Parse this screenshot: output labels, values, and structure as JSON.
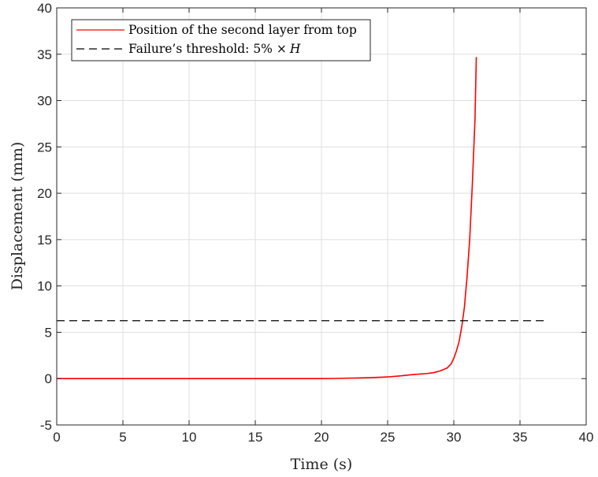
{
  "chart_data": {
    "type": "line",
    "xlabel": "Time (s)",
    "ylabel": "Displacement (mm)",
    "xlim": [
      0,
      40
    ],
    "ylim": [
      -5,
      40
    ],
    "x_ticks": [
      0,
      5,
      10,
      15,
      20,
      25,
      30,
      35,
      40
    ],
    "x_tick_labels": [
      "0",
      "5",
      "10",
      "15",
      "20",
      "25",
      "30",
      "35",
      "40"
    ],
    "y_ticks": [
      -5,
      0,
      5,
      10,
      15,
      20,
      25,
      30,
      35,
      40
    ],
    "y_tick_labels": [
      "-5",
      "0",
      "5",
      "10",
      "15",
      "20",
      "25",
      "30",
      "35",
      "40"
    ],
    "grid": true,
    "legend_position": "top-left",
    "series": [
      {
        "name": "Position of the second layer from top",
        "color": "#ff0000",
        "style": "solid",
        "x": [
          0,
          5,
          10,
          15,
          20,
          21,
          22,
          23,
          24,
          25,
          26,
          27,
          28,
          28.5,
          29,
          29.5,
          29.8,
          30,
          30.2,
          30.4,
          30.6,
          30.8,
          31.0,
          31.2,
          31.4,
          31.6,
          31.7
        ],
        "y": [
          0,
          0,
          0,
          0,
          0,
          0.02,
          0.05,
          0.08,
          0.12,
          0.18,
          0.3,
          0.45,
          0.55,
          0.65,
          0.85,
          1.15,
          1.6,
          2.2,
          3.0,
          4.0,
          5.6,
          7.7,
          11.0,
          15.0,
          21.0,
          28.0,
          34.7
        ]
      },
      {
        "name": "Failure’s threshold: 5% × H",
        "legend_prefix": "Failure’s threshold: 5% ",
        "legend_times": "×",
        "legend_var": "H",
        "color": "#000000",
        "style": "dashed",
        "x": [
          0,
          37
        ],
        "y": [
          6.25,
          6.25
        ]
      }
    ]
  }
}
